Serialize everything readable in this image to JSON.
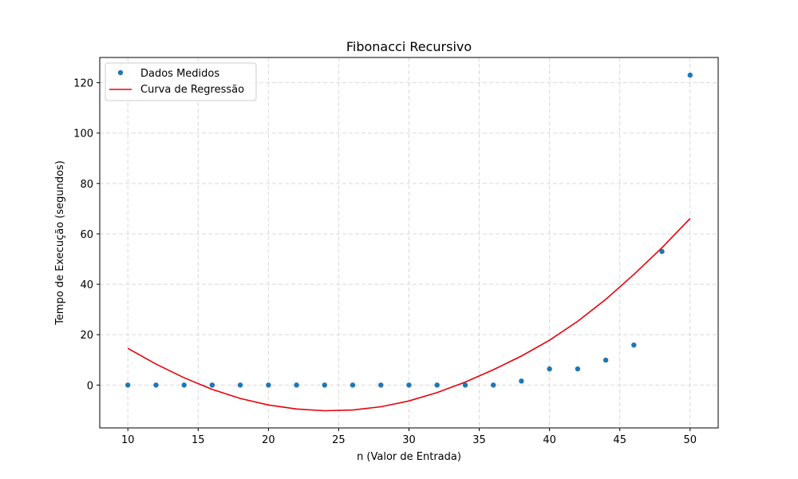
{
  "chart_data": {
    "type": "scatter",
    "title": "Fibonacci Recursivo",
    "xlabel": "n (Valor de Entrada)",
    "ylabel": "Tempo de Execução (segundos)",
    "xlim": [
      8,
      52
    ],
    "ylim": [
      -17,
      130
    ],
    "xticks": [
      10,
      15,
      20,
      25,
      30,
      35,
      40,
      45,
      50
    ],
    "yticks": [
      0,
      20,
      40,
      60,
      80,
      100,
      120
    ],
    "grid": true,
    "legend_position": "top-left",
    "series": [
      {
        "name": "Dados Medidos",
        "kind": "scatter",
        "color": "#1f77b4",
        "x": [
          10,
          12,
          14,
          16,
          18,
          20,
          22,
          24,
          26,
          28,
          30,
          32,
          34,
          36,
          38,
          40,
          42,
          44,
          46,
          48,
          50
        ],
        "y": [
          0,
          0,
          0,
          0,
          0,
          0,
          0,
          0,
          0,
          0,
          0,
          0,
          0,
          0,
          1.6,
          6.4,
          6.4,
          9.9,
          15.9,
          53,
          123
        ]
      },
      {
        "name": "Curva de Regressão",
        "kind": "line",
        "color": "#e8000b",
        "x": [
          10,
          12,
          14,
          16,
          18,
          20,
          22,
          24,
          26,
          28,
          30,
          32,
          34,
          36,
          38,
          40,
          42,
          44,
          46,
          48,
          50
        ],
        "y": [
          14.6,
          8.3,
          2.9,
          -1.7,
          -5.3,
          -7.9,
          -9.5,
          -10.2,
          -9.9,
          -8.6,
          -6.3,
          -3.0,
          1.2,
          6.1,
          11.5,
          17.8,
          25.3,
          34.0,
          43.9,
          54.5,
          66.1
        ]
      }
    ]
  }
}
